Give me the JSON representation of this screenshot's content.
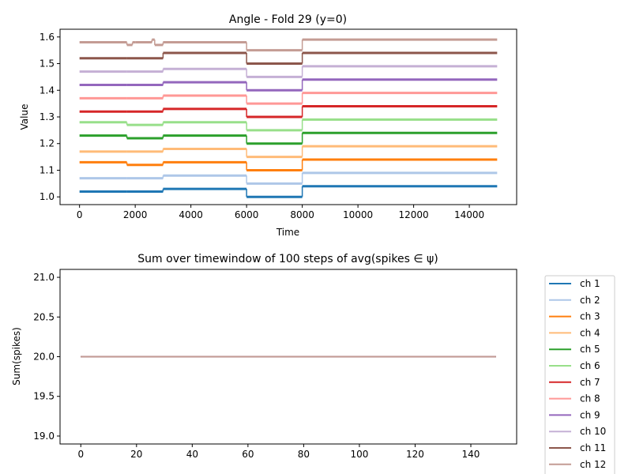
{
  "colors": [
    "#1f77b4",
    "#aec7e8",
    "#ff7f0e",
    "#ffbb78",
    "#2ca02c",
    "#98df8a",
    "#d62728",
    "#ff9896",
    "#9467bd",
    "#c5b0d5",
    "#8c564b",
    "#c49c94"
  ],
  "chart_data": [
    {
      "type": "line",
      "title": "Angle - Fold 29 (y=0)",
      "xlabel": "Time",
      "ylabel": "Value",
      "xlim": [
        -700,
        15700
      ],
      "ylim": [
        0.971,
        1.629
      ],
      "xticks": [
        "0",
        "2000",
        "4000",
        "6000",
        "8000",
        "10000",
        "12000",
        "14000"
      ],
      "xtick_values": [
        0,
        2000,
        4000,
        6000,
        8000,
        10000,
        12000,
        14000
      ],
      "yticks": [
        "1.0",
        "1.1",
        "1.2",
        "1.3",
        "1.4",
        "1.5",
        "1.6"
      ],
      "ytick_values": [
        1.0,
        1.1,
        1.2,
        1.3,
        1.4,
        1.5,
        1.6
      ],
      "series": [
        {
          "segments": [
            [
              0,
              1700,
              1.02
            ],
            [
              1700,
              3000,
              1.02
            ],
            [
              3000,
              6000,
              1.03
            ],
            [
              6000,
              8000,
              1.0
            ],
            [
              8000,
              15000,
              1.04
            ]
          ]
        },
        {
          "segments": [
            [
              0,
              1700,
              1.07
            ],
            [
              1700,
              3000,
              1.07
            ],
            [
              3000,
              6000,
              1.08
            ],
            [
              6000,
              8000,
              1.05
            ],
            [
              8000,
              15000,
              1.09
            ]
          ]
        },
        {
          "segments": [
            [
              0,
              1700,
              1.13
            ],
            [
              1700,
              3000,
              1.12
            ],
            [
              3000,
              6000,
              1.13
            ],
            [
              6000,
              8000,
              1.1
            ],
            [
              8000,
              15000,
              1.14
            ]
          ]
        },
        {
          "segments": [
            [
              0,
              1700,
              1.17
            ],
            [
              1700,
              3000,
              1.17
            ],
            [
              3000,
              6000,
              1.18
            ],
            [
              6000,
              8000,
              1.15
            ],
            [
              8000,
              15000,
              1.19
            ]
          ]
        },
        {
          "segments": [
            [
              0,
              1700,
              1.23
            ],
            [
              1700,
              3000,
              1.22
            ],
            [
              3000,
              6000,
              1.23
            ],
            [
              6000,
              8000,
              1.2
            ],
            [
              8000,
              15000,
              1.24
            ]
          ]
        },
        {
          "segments": [
            [
              0,
              1700,
              1.28
            ],
            [
              1700,
              3000,
              1.27
            ],
            [
              3000,
              6000,
              1.28
            ],
            [
              6000,
              8000,
              1.25
            ],
            [
              8000,
              15000,
              1.29
            ]
          ]
        },
        {
          "segments": [
            [
              0,
              1700,
              1.32
            ],
            [
              1700,
              3000,
              1.32
            ],
            [
              3000,
              6000,
              1.33
            ],
            [
              6000,
              8000,
              1.3
            ],
            [
              8000,
              15000,
              1.34
            ]
          ]
        },
        {
          "segments": [
            [
              0,
              1700,
              1.37
            ],
            [
              1700,
              3000,
              1.37
            ],
            [
              3000,
              6000,
              1.38
            ],
            [
              6000,
              8000,
              1.35
            ],
            [
              8000,
              15000,
              1.39
            ]
          ]
        },
        {
          "segments": [
            [
              0,
              1700,
              1.42
            ],
            [
              1700,
              3000,
              1.42
            ],
            [
              3000,
              6000,
              1.43
            ],
            [
              6000,
              8000,
              1.4
            ],
            [
              8000,
              15000,
              1.44
            ]
          ]
        },
        {
          "segments": [
            [
              0,
              1700,
              1.47
            ],
            [
              1700,
              3000,
              1.47
            ],
            [
              3000,
              6000,
              1.48
            ],
            [
              6000,
              8000,
              1.45
            ],
            [
              8000,
              15000,
              1.49
            ]
          ]
        },
        {
          "segments": [
            [
              0,
              1700,
              1.52
            ],
            [
              1700,
              3000,
              1.52
            ],
            [
              3000,
              6000,
              1.54
            ],
            [
              6000,
              8000,
              1.5
            ],
            [
              8000,
              15000,
              1.54
            ]
          ]
        },
        {
          "segments": [
            [
              0,
              1700,
              1.58
            ],
            [
              1700,
              1900,
              1.57
            ],
            [
              1900,
              2000,
              1.58
            ],
            [
              2000,
              2600,
              1.58
            ],
            [
              2600,
              2700,
              1.59
            ],
            [
              2700,
              3000,
              1.57
            ],
            [
              3000,
              6000,
              1.58
            ],
            [
              6000,
              8000,
              1.55
            ],
            [
              8000,
              15000,
              1.59
            ]
          ]
        }
      ]
    },
    {
      "type": "line",
      "title": "Sum over timewindow of 100 steps of avg(spikes ∈ ψ)",
      "xlabel": "",
      "ylabel": "Sum(spikes)",
      "xlim": [
        -7.45,
        156.45
      ],
      "ylim": [
        18.9,
        21.1
      ],
      "xticks": [
        "0",
        "20",
        "40",
        "60",
        "80",
        "100",
        "120",
        "140"
      ],
      "xtick_values": [
        0,
        20,
        40,
        60,
        80,
        100,
        120,
        140
      ],
      "yticks": [
        "19.0",
        "19.5",
        "20.0",
        "20.5",
        "21.0"
      ],
      "ytick_values": [
        19.0,
        19.5,
        20.0,
        20.5,
        21.0
      ],
      "x_range": [
        0,
        149
      ],
      "series": [
        {
          "name": "ch 1",
          "value": 20.0
        },
        {
          "name": "ch 2",
          "value": 20.0
        },
        {
          "name": "ch 3",
          "value": 20.0
        },
        {
          "name": "ch 4",
          "value": 20.0
        },
        {
          "name": "ch 5",
          "value": 20.0
        },
        {
          "name": "ch 6",
          "value": 20.0
        },
        {
          "name": "ch 7",
          "value": 20.0
        },
        {
          "name": "ch 8",
          "value": 20.0
        },
        {
          "name": "ch 9",
          "value": 20.0
        },
        {
          "name": "ch 10",
          "value": 20.0
        },
        {
          "name": "ch 11",
          "value": 20.0
        },
        {
          "name": "ch 12",
          "value": 20.0
        }
      ],
      "legend": "outside-right"
    }
  ]
}
